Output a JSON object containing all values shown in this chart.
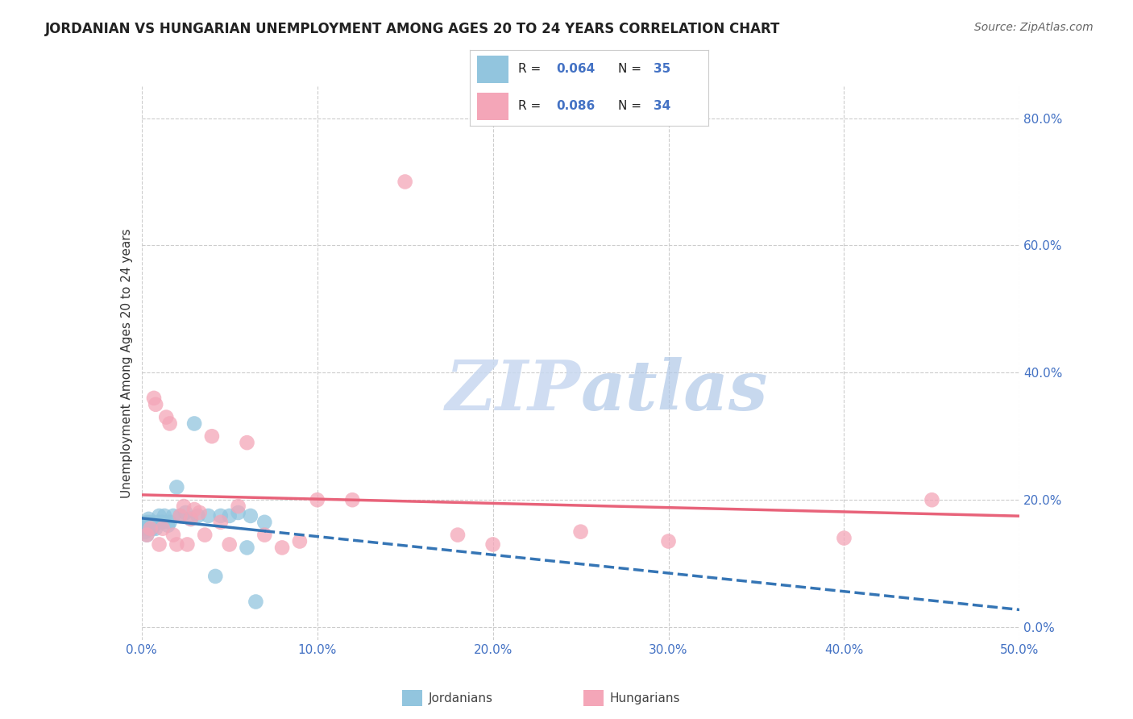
{
  "title": "JORDANIAN VS HUNGARIAN UNEMPLOYMENT AMONG AGES 20 TO 24 YEARS CORRELATION CHART",
  "source": "Source: ZipAtlas.com",
  "ylabel": "Unemployment Among Ages 20 to 24 years",
  "xlim": [
    0.0,
    0.5
  ],
  "ylim": [
    -0.02,
    0.85
  ],
  "xticks": [
    0.0,
    0.1,
    0.2,
    0.3,
    0.4,
    0.5
  ],
  "yticks": [
    0.0,
    0.2,
    0.4,
    0.6,
    0.8
  ],
  "xtick_labels": [
    "0.0%",
    "10.0%",
    "20.0%",
    "30.0%",
    "40.0%",
    "50.0%"
  ],
  "ytick_labels": [
    "0.0%",
    "20.0%",
    "40.0%",
    "60.0%",
    "80.0%"
  ],
  "legend_R1": "0.064",
  "legend_N1": "35",
  "legend_R2": "0.086",
  "legend_N2": "34",
  "color_jordan": "#92c5de",
  "color_hungary": "#f4a6b8",
  "color_jordan_line": "#3575b5",
  "color_hungary_line": "#e8637a",
  "color_blue_text": "#4472c4",
  "background_color": "#ffffff",
  "jordan_x": [
    0.001,
    0.002,
    0.003,
    0.003,
    0.003,
    0.004,
    0.004,
    0.005,
    0.005,
    0.006,
    0.007,
    0.008,
    0.009,
    0.01,
    0.011,
    0.012,
    0.013,
    0.015,
    0.016,
    0.018,
    0.02,
    0.022,
    0.025,
    0.028,
    0.03,
    0.032,
    0.038,
    0.042,
    0.045,
    0.05,
    0.055,
    0.06,
    0.062,
    0.065,
    0.07
  ],
  "jordan_y": [
    0.155,
    0.15,
    0.16,
    0.145,
    0.165,
    0.155,
    0.17,
    0.155,
    0.165,
    0.155,
    0.16,
    0.155,
    0.165,
    0.175,
    0.165,
    0.165,
    0.175,
    0.16,
    0.165,
    0.175,
    0.22,
    0.175,
    0.18,
    0.17,
    0.32,
    0.175,
    0.175,
    0.08,
    0.175,
    0.175,
    0.18,
    0.125,
    0.175,
    0.04,
    0.165
  ],
  "hungary_x": [
    0.003,
    0.005,
    0.007,
    0.008,
    0.01,
    0.012,
    0.014,
    0.016,
    0.018,
    0.02,
    0.022,
    0.024,
    0.026,
    0.028,
    0.03,
    0.033,
    0.036,
    0.04,
    0.045,
    0.05,
    0.055,
    0.06,
    0.07,
    0.08,
    0.09,
    0.1,
    0.12,
    0.15,
    0.18,
    0.2,
    0.25,
    0.3,
    0.4,
    0.45
  ],
  "hungary_y": [
    0.145,
    0.155,
    0.36,
    0.35,
    0.13,
    0.155,
    0.33,
    0.32,
    0.145,
    0.13,
    0.175,
    0.19,
    0.13,
    0.17,
    0.185,
    0.18,
    0.145,
    0.3,
    0.165,
    0.13,
    0.19,
    0.29,
    0.145,
    0.125,
    0.135,
    0.2,
    0.2,
    0.7,
    0.145,
    0.13,
    0.15,
    0.135,
    0.14,
    0.2
  ]
}
